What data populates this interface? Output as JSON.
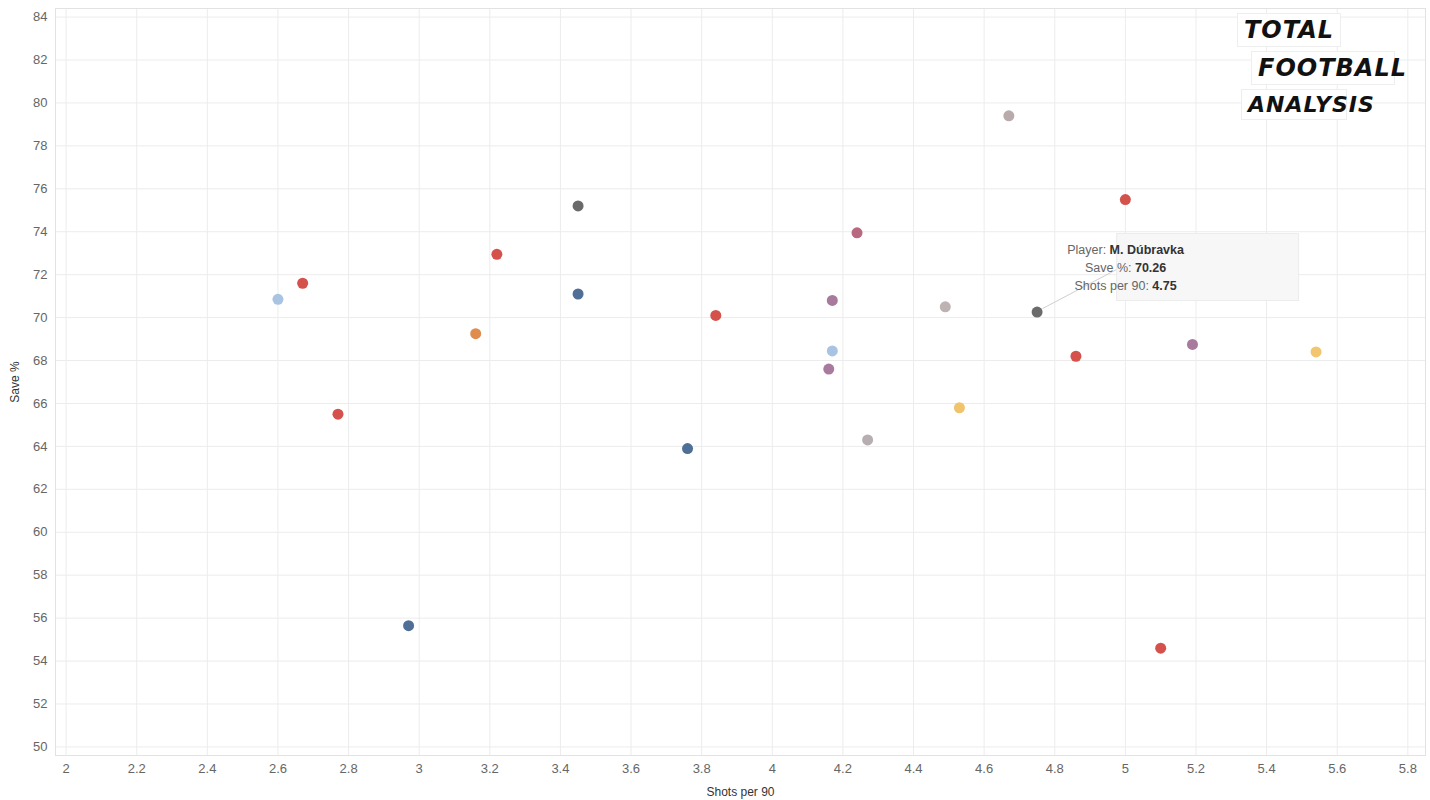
{
  "chart_data": {
    "type": "scatter",
    "x_label": "Shots per 90",
    "y_label": "Save %",
    "logo_text": [
      "TOTAL",
      "FOOTBALL",
      "ANALYSIS"
    ],
    "x": [
      2.6,
      2.67,
      2.77,
      2.97,
      3.16,
      3.22,
      3.45,
      3.45,
      3.76,
      3.84,
      4.16,
      4.17,
      4.17,
      4.24,
      4.27,
      4.49,
      4.53,
      4.67,
      4.75,
      4.86,
      5.0,
      5.1,
      5.19,
      5.54
    ],
    "values": [
      70.85,
      71.6,
      65.5,
      55.65,
      69.25,
      72.95,
      75.2,
      71.1,
      63.9,
      70.1,
      67.6,
      70.8,
      68.45,
      73.95,
      64.3,
      70.5,
      65.8,
      79.4,
      70.26,
      68.2,
      75.5,
      54.6,
      68.75,
      68.4
    ],
    "colors": [
      "#a9c4e2",
      "#d5524c",
      "#d5524c",
      "#4f6f96",
      "#e08c4e",
      "#d5524c",
      "#6a6a6a",
      "#4f6f96",
      "#4f6f96",
      "#d5524c",
      "#a87a9e",
      "#a87a9e",
      "#a9c4e2",
      "#b8687f",
      "#b6aeb0",
      "#bdb3b3",
      "#f1c46b",
      "#b9abab",
      "#6b6b6b",
      "#d5524c",
      "#d5524c",
      "#d5524c",
      "#a87a9e",
      "#f2c670"
    ],
    "xlim": [
      1.97,
      5.85
    ],
    "ylim": [
      49.6,
      84.4
    ],
    "xticks": [
      2,
      2.2,
      2.4,
      2.6,
      2.8,
      3,
      3.2,
      3.4,
      3.6,
      3.8,
      4,
      4.2,
      4.4,
      4.6,
      4.8,
      5,
      5.2,
      5.4,
      5.6,
      5.8
    ],
    "yticks": [
      50,
      52,
      54,
      56,
      58,
      60,
      62,
      64,
      66,
      68,
      70,
      72,
      74,
      76,
      78,
      80,
      82,
      84
    ],
    "grid": true,
    "marker": "circle",
    "annotation": {
      "x": 4.75,
      "y": 70.26,
      "lines": [
        {
          "label": "Player:",
          "value": "M. Dúbravka"
        },
        {
          "label": "Save %:",
          "value": "70.26"
        },
        {
          "label": "Shots per 90:",
          "value": "4.75"
        }
      ]
    }
  }
}
